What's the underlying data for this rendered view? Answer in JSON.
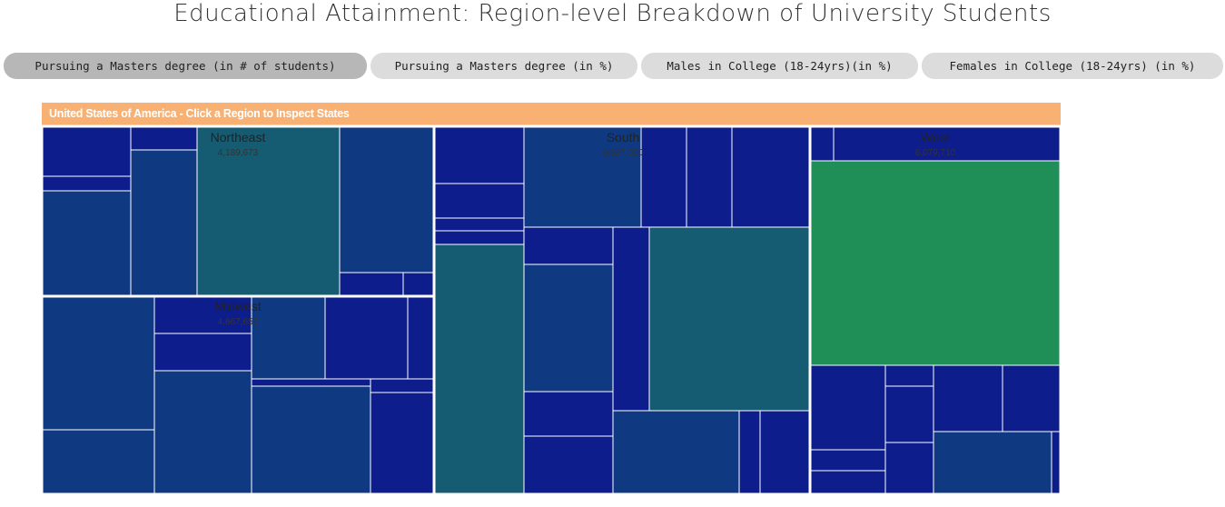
{
  "page": {
    "title": "Educational Attainment: Region-level Breakdown of University Students"
  },
  "tabs": [
    {
      "label": "Pursuing a Masters degree (in # of students)",
      "active": true
    },
    {
      "label": "Pursuing a Masters degree (in %)",
      "active": false
    },
    {
      "label": "Males in College (18-24yrs)(in %)",
      "active": false
    },
    {
      "label": "Females in College (18-24yrs) (in %)",
      "active": false
    }
  ],
  "treemap": {
    "header": "United States of America - Click a Region to Inspect States"
  },
  "colors": {
    "header": "#f8b172",
    "low": "#0d1e8c",
    "mid": "#0f3a82",
    "teal": "#155c73",
    "high": "#1f8e57",
    "active_tab": "#b7b7b7",
    "tab": "#dcdcdc"
  },
  "chart_data": {
    "type": "treemap",
    "regions": [
      {
        "name": "Northeast",
        "value_label": "4,189,673"
      },
      {
        "name": "Midwest",
        "value_label": "4,667,652"
      },
      {
        "name": "South",
        "value_label": "8,627,390"
      },
      {
        "name": "West",
        "value_label": "6,079,710"
      }
    ]
  }
}
